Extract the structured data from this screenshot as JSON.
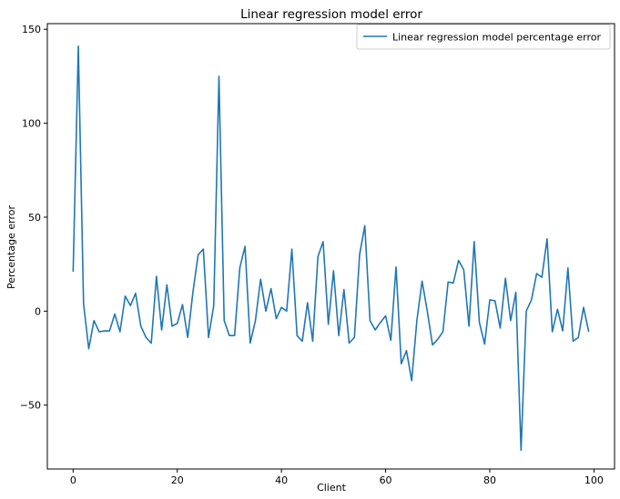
{
  "chart_data": {
    "type": "line",
    "title": "Linear regression model error",
    "xlabel": "Client",
    "ylabel": "Percentage error",
    "xlim": [
      -4.95,
      103.95
    ],
    "ylim": [
      -84.0,
      153.0
    ],
    "xticks": [
      0,
      20,
      40,
      60,
      80,
      100
    ],
    "yticks": [
      -50,
      0,
      50,
      100,
      150
    ],
    "xtick_labels": [
      "0",
      "20",
      "40",
      "60",
      "80",
      "100"
    ],
    "ytick_labels": [
      "−50",
      "0",
      "50",
      "100",
      "150"
    ],
    "grid": false,
    "legend_position": "top-right",
    "series": [
      {
        "name": "Linear regression model percentage error",
        "color": "#1f77b4",
        "x": [
          0,
          1,
          2,
          3,
          4,
          5,
          6,
          7,
          8,
          9,
          10,
          11,
          12,
          13,
          14,
          15,
          16,
          17,
          18,
          19,
          20,
          21,
          22,
          23,
          24,
          25,
          26,
          27,
          28,
          29,
          30,
          31,
          32,
          33,
          34,
          35,
          36,
          37,
          38,
          39,
          40,
          41,
          42,
          43,
          44,
          45,
          46,
          47,
          48,
          49,
          50,
          51,
          52,
          53,
          54,
          55,
          56,
          57,
          58,
          59,
          60,
          61,
          62,
          63,
          64,
          65,
          66,
          67,
          68,
          69,
          70,
          71,
          72,
          73,
          74,
          75,
          76,
          77,
          78,
          79,
          80,
          81,
          82,
          83,
          84,
          85,
          86,
          87,
          88,
          89,
          90,
          91,
          92,
          93,
          94,
          95,
          96,
          97,
          98,
          99
        ],
        "values": [
          21,
          141,
          4,
          -20,
          -5,
          -11,
          -10.5,
          -10.5,
          -1.5,
          -11,
          8,
          3,
          9.5,
          -8,
          -14,
          -17,
          18.5,
          -10,
          14,
          -8,
          -6.5,
          3.5,
          -14,
          10,
          30,
          33,
          -14,
          3,
          125,
          -5,
          -13,
          -13,
          23,
          34.5,
          -17,
          -5,
          17,
          0,
          12,
          -4,
          2,
          0,
          33,
          -13,
          -16,
          4.5,
          -16,
          29,
          37,
          -7,
          21.5,
          -13,
          11.5,
          -17,
          -14,
          30,
          45.5,
          -5,
          -10,
          -6,
          -2.5,
          -15.5,
          23.5,
          -28,
          -21,
          -37,
          -5,
          16,
          0,
          -18,
          -15,
          -11,
          15.5,
          15,
          27,
          22,
          -8,
          37,
          -6,
          -17.5,
          6,
          5.5,
          -9,
          17.5,
          -5,
          10,
          -74,
          0,
          6,
          20,
          18,
          38.5,
          -11,
          1,
          -10.5,
          23,
          -16,
          -14,
          2,
          -11
        ]
      }
    ]
  }
}
